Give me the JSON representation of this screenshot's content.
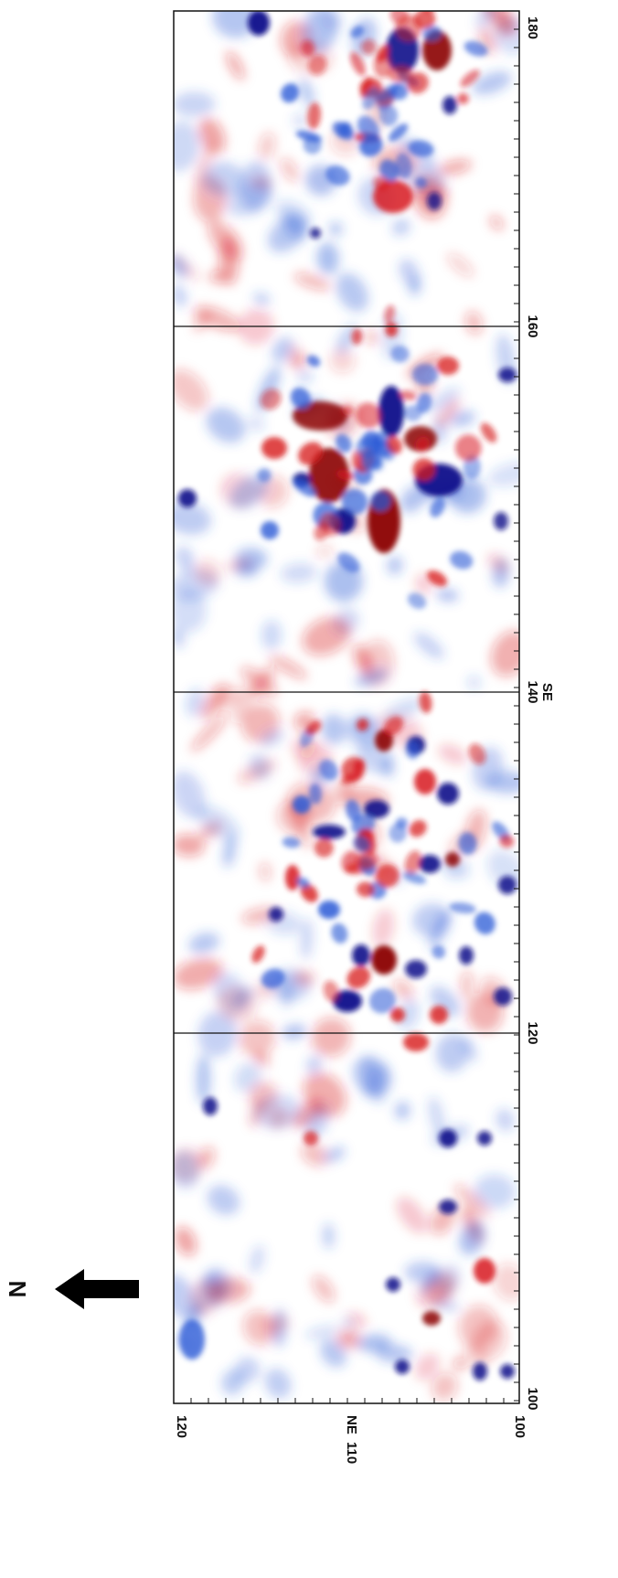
{
  "survey": {
    "easting_axis": {
      "tick_labels": [
        "180",
        "160",
        "140",
        "120",
        "100"
      ],
      "special_label": "SE"
    },
    "northing_axis": {
      "tick_labels": [
        "120",
        "110",
        "100"
      ],
      "special_label": "NE"
    },
    "north_arrow": {
      "letter": "N"
    },
    "panels": 4,
    "colors": {
      "positive": "#d7191c",
      "positive_strong": "#8b0000",
      "negative": "#2c5bd6",
      "negative_strong": "#10108a",
      "background": "#ffffff",
      "grid_line": "#111111"
    }
  }
}
